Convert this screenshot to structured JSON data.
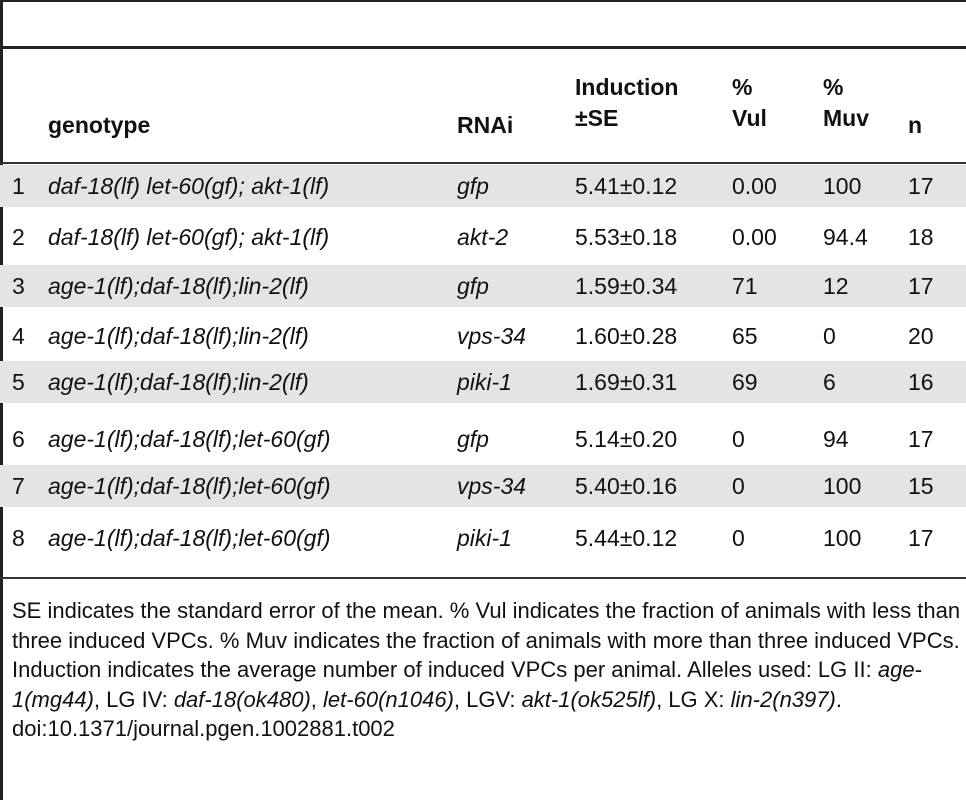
{
  "table": {
    "columns": {
      "genotype": "genotype",
      "rnai": "RNAi",
      "induction_line1": "Induction",
      "induction_line2": "±SE",
      "vul_line1": "%",
      "vul_line2": "Vul",
      "muv_line1": "%",
      "muv_line2": "Muv",
      "n": "n"
    },
    "rows": [
      {
        "num": "1",
        "genotype": "daf-18(lf) let-60(gf); akt-1(lf)",
        "rnai": "gfp",
        "induction": "5.41±0.12",
        "vul": "0.00",
        "muv": "100",
        "n": "17"
      },
      {
        "num": "2",
        "genotype": "daf-18(lf) let-60(gf); akt-1(lf)",
        "rnai": "akt-2",
        "induction": "5.53±0.18",
        "vul": "0.00",
        "muv": "94.4",
        "n": "18"
      },
      {
        "num": "3",
        "genotype": "age-1(lf);daf-18(lf);lin-2(lf)",
        "rnai": "gfp",
        "induction": "1.59±0.34",
        "vul": "71",
        "muv": "12",
        "n": "17"
      },
      {
        "num": "4",
        "genotype": "age-1(lf);daf-18(lf);lin-2(lf)",
        "rnai": "vps-34",
        "induction": "1.60±0.28",
        "vul": "65",
        "muv": "0",
        "n": "20"
      },
      {
        "num": "5",
        "genotype": "age-1(lf);daf-18(lf);lin-2(lf)",
        "rnai": "piki-1",
        "induction": "1.69±0.31",
        "vul": "69",
        "muv": "6",
        "n": "16"
      },
      {
        "num": "6",
        "genotype": "age-1(lf);daf-18(lf);let-60(gf)",
        "rnai": "gfp",
        "induction": "5.14±0.20",
        "vul": "0",
        "muv": "94",
        "n": "17"
      },
      {
        "num": "7",
        "genotype": "age-1(lf);daf-18(lf);let-60(gf)",
        "rnai": "vps-34",
        "induction": "5.40±0.16",
        "vul": "0",
        "muv": "100",
        "n": "15"
      },
      {
        "num": "8",
        "genotype": "age-1(lf);daf-18(lf);let-60(gf)",
        "rnai": "piki-1",
        "induction": "5.44±0.12",
        "vul": "0",
        "muv": "100",
        "n": "17"
      }
    ]
  },
  "footnote": {
    "text_1": "SE indicates the standard error of the mean. % Vul indicates the fraction of animals with less than three induced VPCs. % Muv indicates the fraction of animals with more than three induced VPCs. Induction indicates the average number of induced VPCs per animal. Alleles used: LG II: ",
    "allele_age1": "age-1(mg44)",
    "text_2": ", LG IV: ",
    "allele_daf18": "daf-18(ok480)",
    "text_3": ", ",
    "allele_let60": "let-60(n1046)",
    "text_4": ", LGV: ",
    "allele_akt1": "akt-1(ok525lf)",
    "text_5": ", LG X: ",
    "allele_lin2": "lin-2(n397)",
    "text_6": ".",
    "doi": "doi:10.1371/journal.pgen.1002881.t002"
  }
}
